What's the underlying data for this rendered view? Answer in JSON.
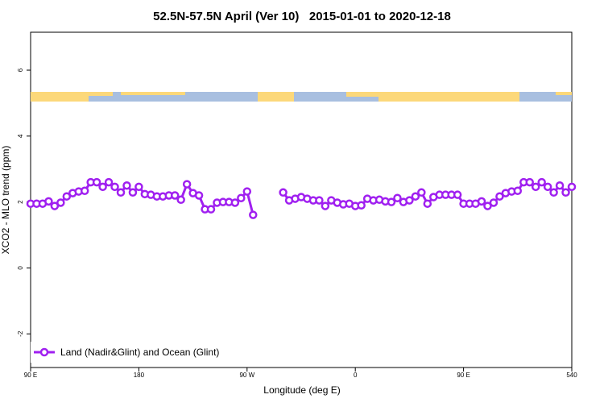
{
  "chart_data": {
    "type": "line",
    "title": "52.5N-57.5N April (Ver 10)   2015-01-01 to 2020-12-18",
    "x_label": "Longitude (deg E)",
    "y_label": "XCO2 - MLO trend (ppm)",
    "x": [
      90,
      95,
      100,
      105,
      110,
      115,
      120,
      125,
      130,
      135,
      140,
      145,
      150,
      155,
      160,
      165,
      170,
      175,
      180,
      185,
      190,
      195,
      200,
      205,
      210,
      215,
      220,
      225,
      230,
      235,
      240,
      245,
      250,
      255,
      260,
      265,
      270,
      275,
      280,
      285,
      290,
      295,
      300,
      305,
      310,
      315,
      320,
      325,
      330,
      335,
      340,
      345,
      350,
      355,
      360,
      365,
      370,
      375,
      380,
      385,
      390,
      395,
      400,
      405,
      410,
      415,
      420,
      425,
      430,
      435,
      440,
      445,
      450,
      455,
      460,
      465,
      470,
      475,
      480,
      485,
      490,
      495,
      500,
      505,
      510,
      515,
      520,
      525,
      530,
      535,
      540
    ],
    "series": [
      {
        "name": "Land (Nadir&Glint) and Ocean (Glint)",
        "color": "#a020f0",
        "values": [
          1.95,
          1.95,
          1.95,
          2.02,
          1.88,
          1.98,
          2.17,
          2.27,
          2.32,
          2.34,
          2.6,
          2.6,
          2.46,
          2.6,
          2.46,
          2.29,
          2.5,
          2.29,
          2.46,
          2.24,
          2.22,
          2.17,
          2.17,
          2.2,
          2.2,
          2.07,
          2.54,
          2.27,
          2.2,
          1.78,
          1.78,
          1.98,
          2.0,
          2.0,
          1.98,
          2.12,
          2.32,
          1.61,
          null,
          null,
          null,
          null,
          2.29,
          2.05,
          2.1,
          2.15,
          2.1,
          2.05,
          2.05,
          1.88,
          2.05,
          1.98,
          1.93,
          1.95,
          1.88,
          1.9,
          2.1,
          2.05,
          2.07,
          2.02,
          2.0,
          2.12,
          2.0,
          2.05,
          2.17,
          2.29,
          1.95,
          2.15,
          2.22,
          2.22,
          2.22,
          2.22,
          1.95,
          1.95,
          1.95,
          2.02,
          1.88,
          1.98,
          2.17,
          2.27,
          2.32,
          2.34,
          2.6,
          2.6,
          2.46,
          2.6,
          2.46,
          2.29,
          2.5,
          2.29,
          2.46
        ]
      }
    ],
    "xlim": [
      90,
      540
    ],
    "xticks": [
      {
        "value": 90,
        "label": "90 E"
      },
      180,
      {
        "value": 270,
        "label": "90 W"
      },
      {
        "value": 360,
        "label": "0"
      },
      {
        "value": 450,
        "label": "90 E"
      },
      540
    ],
    "ylim": [
      -3.02,
      7.15
    ],
    "yticks": [
      -2,
      0,
      2,
      4,
      6
    ],
    "legend": "bottom-left"
  }
}
